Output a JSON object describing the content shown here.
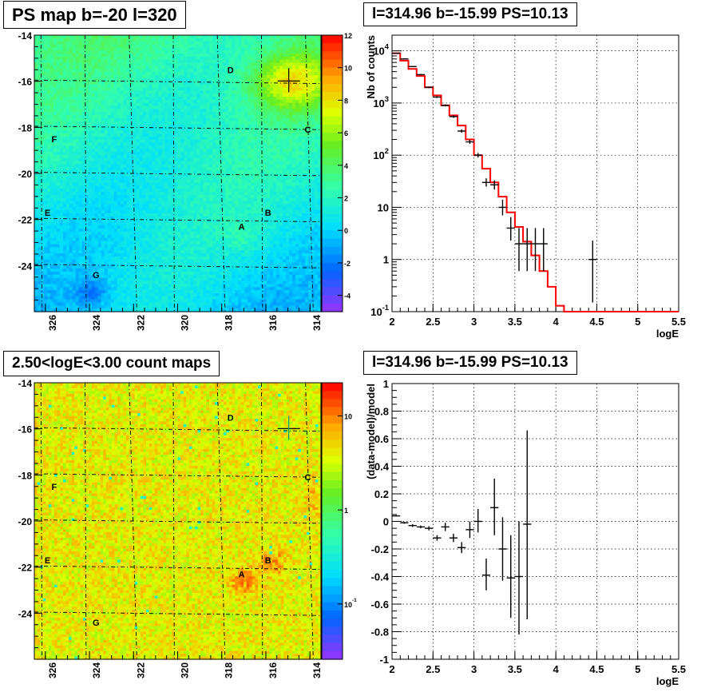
{
  "panels": {
    "tl_title": "PS map b=-20 l=320",
    "tr_title": "l=314.96 b=-15.99 PS=10.13",
    "bl_title": "2.50<logE<3.00 count maps",
    "br_title": "l=314.96 b=-15.99 PS=10.13"
  },
  "chart_data": [
    {
      "type": "heatmap",
      "name": "PS map b=-20 l=320",
      "title": "PS map b=-20 l=320",
      "xlim": [
        313.5,
        326.5
      ],
      "ylim": [
        -26,
        -14
      ],
      "x_ticks": [
        "326",
        "324",
        "322",
        "320",
        "318",
        "316",
        "314"
      ],
      "y_ticks": [
        "-14",
        "-16",
        "-18",
        "-20",
        "-22",
        "-24"
      ],
      "colorbar": {
        "range": [
          -5,
          12
        ],
        "ticks": [
          "12",
          "10",
          "8",
          "6",
          "4",
          "2",
          "0",
          "-2",
          "-4"
        ],
        "scale": "linear"
      },
      "source_labels": [
        {
          "label": "D",
          "l": 317.6,
          "b": -15.5
        },
        {
          "label": "C",
          "l": 314.1,
          "b": -18.1
        },
        {
          "label": "F",
          "l": 325.6,
          "b": -18.5
        },
        {
          "label": "B",
          "l": 315.9,
          "b": -21.7
        },
        {
          "label": "E",
          "l": 325.9,
          "b": -21.7
        },
        {
          "label": "A",
          "l": 317.1,
          "b": -22.3
        },
        {
          "label": "G",
          "l": 323.7,
          "b": -24.4
        }
      ],
      "marker": {
        "l": 314.96,
        "b": -15.99
      }
    },
    {
      "type": "line",
      "title": "l=314.96 b=-15.99 PS=10.13",
      "xlabel": "logE",
      "ylabel": "Nb of counts",
      "xlim": [
        2,
        5.5
      ],
      "ylim": [
        0.1,
        20000
      ],
      "yscale": "log",
      "grid": true,
      "x_ticks": [
        "2",
        "2.5",
        "3",
        "3.5",
        "4",
        "4.5",
        "5",
        "5.5"
      ],
      "y_ticks": [
        "10^-1",
        "1",
        "10",
        "10^2",
        "10^3",
        "10^4"
      ],
      "model_step": {
        "edges": [
          2.0,
          2.1,
          2.2,
          2.3,
          2.4,
          2.5,
          2.6,
          2.7,
          2.8,
          2.9,
          3.0,
          3.1,
          3.2,
          3.3,
          3.4,
          3.5,
          3.6,
          3.7,
          3.8,
          3.9,
          4.0,
          4.1,
          4.2,
          4.3,
          4.4,
          4.5,
          4.6,
          4.7,
          4.8,
          4.9,
          5.0,
          5.1,
          5.2,
          5.3,
          5.4,
          5.5
        ],
        "values": [
          9000,
          6500,
          4500,
          3300,
          2000,
          1400,
          900,
          580,
          370,
          200,
          100,
          55,
          30,
          16,
          8,
          4.2,
          2.2,
          1.2,
          0.6,
          0.3,
          0.13,
          0.1,
          0.1,
          0.1,
          0.1,
          0.1,
          0.1,
          0.1,
          0.1,
          0.1,
          0.1,
          0.1,
          0.1,
          0.1,
          0.1
        ]
      },
      "data_points": [
        {
          "x": 2.05,
          "y": 9000,
          "ylo": 8800,
          "yhi": 9200
        },
        {
          "x": 2.15,
          "y": 7000,
          "ylo": 6850,
          "yhi": 7150
        },
        {
          "x": 2.25,
          "y": 5000,
          "ylo": 4880,
          "yhi": 5120
        },
        {
          "x": 2.35,
          "y": 3500,
          "ylo": 3400,
          "yhi": 3600
        },
        {
          "x": 2.45,
          "y": 2000,
          "ylo": 1930,
          "yhi": 2070
        },
        {
          "x": 2.55,
          "y": 1300,
          "ylo": 1250,
          "yhi": 1350
        },
        {
          "x": 2.65,
          "y": 900,
          "ylo": 860,
          "yhi": 940
        },
        {
          "x": 2.75,
          "y": 550,
          "ylo": 520,
          "yhi": 580
        },
        {
          "x": 2.85,
          "y": 290,
          "ylo": 270,
          "yhi": 310
        },
        {
          "x": 2.95,
          "y": 180,
          "ylo": 165,
          "yhi": 195
        },
        {
          "x": 3.05,
          "y": 100,
          "ylo": 90,
          "yhi": 110
        },
        {
          "x": 3.15,
          "y": 30,
          "ylo": 25,
          "yhi": 36
        },
        {
          "x": 3.25,
          "y": 27,
          "ylo": 22,
          "yhi": 33
        },
        {
          "x": 3.35,
          "y": 10,
          "ylo": 7,
          "yhi": 14
        },
        {
          "x": 3.45,
          "y": 4,
          "ylo": 2.3,
          "yhi": 6.5
        },
        {
          "x": 3.55,
          "y": 2,
          "ylo": 0.6,
          "yhi": 4
        },
        {
          "x": 3.65,
          "y": 2,
          "ylo": 0.6,
          "yhi": 4
        },
        {
          "x": 3.75,
          "y": 2,
          "ylo": 0.6,
          "yhi": 4
        },
        {
          "x": 3.85,
          "y": 2,
          "ylo": 0.6,
          "yhi": 4
        },
        {
          "x": 4.45,
          "y": 1,
          "ylo": 0.15,
          "yhi": 2.3
        }
      ]
    },
    {
      "type": "heatmap",
      "name": "2.50<logE<3.00 count maps",
      "title": "2.50<logE<3.00 count maps",
      "xlim": [
        313.5,
        326.5
      ],
      "ylim": [
        -26,
        -14
      ],
      "x_ticks": [
        "326",
        "324",
        "322",
        "320",
        "318",
        "316",
        "314"
      ],
      "y_ticks": [
        "-14",
        "-16",
        "-18",
        "-20",
        "-22",
        "-24"
      ],
      "colorbar": {
        "scale": "log",
        "ticks": [
          "10",
          "1",
          "10^-1"
        ]
      },
      "source_labels": [
        {
          "label": "D",
          "l": 317.6,
          "b": -15.5
        },
        {
          "label": "C",
          "l": 314.1,
          "b": -18.1
        },
        {
          "label": "F",
          "l": 325.6,
          "b": -18.5
        },
        {
          "label": "B",
          "l": 315.9,
          "b": -21.7
        },
        {
          "label": "E",
          "l": 325.9,
          "b": -21.7
        },
        {
          "label": "A",
          "l": 317.1,
          "b": -22.3
        },
        {
          "label": "G",
          "l": 323.7,
          "b": -24.4
        }
      ],
      "marker": {
        "l": 314.96,
        "b": -15.99
      }
    },
    {
      "type": "scatter",
      "title": "l=314.96 b=-15.99 PS=10.13",
      "xlabel": "logE",
      "ylabel": "(data-model)/model",
      "xlim": [
        2,
        5.5
      ],
      "ylim": [
        -1,
        1
      ],
      "grid": true,
      "x_ticks": [
        "2",
        "2.5",
        "3",
        "3.5",
        "4",
        "4.5",
        "5",
        "5.5"
      ],
      "y_ticks": [
        "-1",
        "-0.8",
        "-0.6",
        "-0.4",
        "-0.2",
        "0",
        "0.2",
        "0.4",
        "0.6",
        "0.8",
        "1"
      ],
      "data_points": [
        {
          "x": 2.05,
          "y": 0.04,
          "ylo": 0.035,
          "yhi": 0.045
        },
        {
          "x": 2.15,
          "y": -0.01,
          "ylo": -0.017,
          "yhi": -0.003
        },
        {
          "x": 2.25,
          "y": -0.03,
          "ylo": -0.04,
          "yhi": -0.02
        },
        {
          "x": 2.35,
          "y": -0.04,
          "ylo": -0.05,
          "yhi": -0.03
        },
        {
          "x": 2.45,
          "y": -0.05,
          "ylo": -0.065,
          "yhi": -0.035
        },
        {
          "x": 2.55,
          "y": -0.12,
          "ylo": -0.14,
          "yhi": -0.1
        },
        {
          "x": 2.65,
          "y": -0.04,
          "ylo": -0.07,
          "yhi": -0.01
        },
        {
          "x": 2.75,
          "y": -0.12,
          "ylo": -0.15,
          "yhi": -0.09
        },
        {
          "x": 2.85,
          "y": -0.19,
          "ylo": -0.23,
          "yhi": -0.15
        },
        {
          "x": 2.95,
          "y": -0.06,
          "ylo": -0.12,
          "yhi": 0.0
        },
        {
          "x": 3.05,
          "y": 0.0,
          "ylo": -0.08,
          "yhi": 0.09
        },
        {
          "x": 3.15,
          "y": -0.39,
          "ylo": -0.5,
          "yhi": -0.27
        },
        {
          "x": 3.25,
          "y": 0.1,
          "ylo": -0.1,
          "yhi": 0.31
        },
        {
          "x": 3.35,
          "y": -0.2,
          "ylo": -0.43,
          "yhi": 0.03
        },
        {
          "x": 3.45,
          "y": -0.41,
          "ylo": -0.7,
          "yhi": -0.1
        },
        {
          "x": 3.55,
          "y": -0.4,
          "ylo": -0.82,
          "yhi": 0.0
        },
        {
          "x": 3.65,
          "y": -0.02,
          "ylo": -0.71,
          "yhi": 0.66
        }
      ]
    }
  ]
}
